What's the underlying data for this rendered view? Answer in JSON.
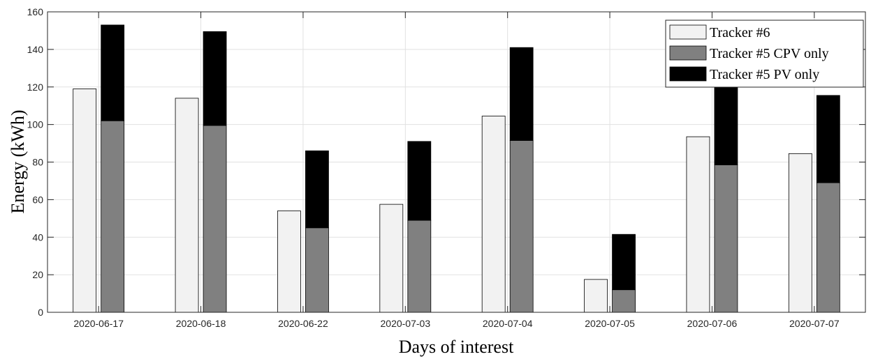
{
  "chart_data": {
    "type": "bar",
    "subtype": "grouped-stacked",
    "title": "",
    "xlabel": "Days of interest",
    "ylabel": "Energy (kWh)",
    "ylim": [
      0,
      160
    ],
    "yticks": [
      0,
      20,
      40,
      60,
      80,
      100,
      120,
      140,
      160
    ],
    "grid": true,
    "legend_position": "top-right",
    "categories": [
      "2020-06-17",
      "2020-06-18",
      "2020-06-22",
      "2020-07-03",
      "2020-07-04",
      "2020-07-05",
      "2020-07-06",
      "2020-07-07"
    ],
    "series": [
      {
        "name": "Tracker #6",
        "stack": "tracker6",
        "color": "#f2f2f2",
        "values": [
          119,
          114,
          54,
          57.5,
          104.5,
          17.5,
          93.5,
          84.5
        ]
      },
      {
        "name": "Tracker #5 CPV only",
        "stack": "tracker5",
        "color": "#808080",
        "values": [
          102,
          99.5,
          45,
          49,
          91.5,
          12,
          78.5,
          69
        ]
      },
      {
        "name": "Tracker #5 PV only",
        "stack": "tracker5",
        "color": "#000000",
        "values": [
          51,
          50,
          41,
          42,
          49.5,
          29.5,
          44,
          46.5
        ]
      }
    ]
  }
}
